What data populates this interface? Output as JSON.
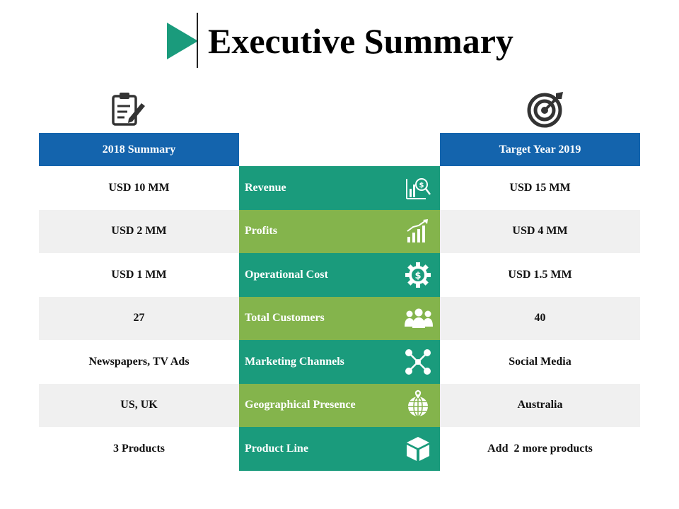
{
  "title": "Executive Summary",
  "headers": {
    "left": "2018 Summary",
    "right": "Target Year 2019"
  },
  "rows": [
    {
      "left": "USD 10 MM",
      "label": "Revenue",
      "right": "USD 15 MM",
      "icon": "revenue-chart-icon"
    },
    {
      "left": "USD 2 MM",
      "label": "Profits",
      "right": "USD 4 MM",
      "icon": "growth-chart-icon"
    },
    {
      "left": "USD 1 MM",
      "label": "Operational Cost",
      "right": "USD 1.5 MM",
      "icon": "dollar-gear-icon"
    },
    {
      "left": "27",
      "label": "Total Customers",
      "right": "40",
      "icon": "customers-icon"
    },
    {
      "left": "Newspapers, TV Ads",
      "label": "Marketing Channels",
      "right": "Social Media",
      "icon": "network-icon"
    },
    {
      "left": "US, UK",
      "label": "Geographical Presence",
      "right": "Australia",
      "icon": "globe-pin-icon"
    },
    {
      "left": "3 Products",
      "label": "Product Line",
      "right": "Add  2 more products",
      "icon": "box-icon"
    }
  ],
  "colors": {
    "teal": "#1a9b7c",
    "green": "#84b44c",
    "blue": "#1464ad",
    "grey": "#f0f0f0"
  }
}
